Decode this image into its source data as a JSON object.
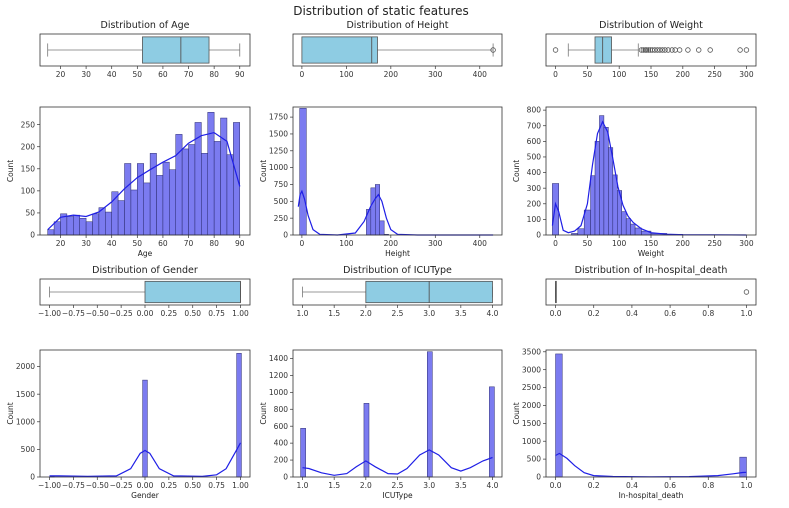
{
  "suptitle": "Distribution of static features",
  "colors": {
    "box": "#8ecce3",
    "hist": "#7b7bf0",
    "kde": "#1f1fe6"
  },
  "chart_data": [
    {
      "type": "box",
      "feature": "Age",
      "title": "Distribution of Age",
      "xlim": [
        12,
        94
      ],
      "xticks": [
        20,
        30,
        40,
        50,
        60,
        70,
        80,
        90
      ],
      "whisker_low": 15,
      "q1": 52,
      "median": 67,
      "q3": 78,
      "whisker_high": 90,
      "fliers": []
    },
    {
      "type": "bar",
      "feature": "Age",
      "xlabel": "Age",
      "ylabel": "Count",
      "xlim": [
        12,
        94
      ],
      "ylim": [
        0,
        290
      ],
      "xticks": [
        20,
        30,
        40,
        50,
        60,
        70,
        80,
        90
      ],
      "yticks": [
        0,
        50,
        100,
        150,
        200,
        250
      ],
      "bins": [
        {
          "x0": 15,
          "x1": 17.5,
          "count": 12
        },
        {
          "x0": 17.5,
          "x1": 20,
          "count": 30
        },
        {
          "x0": 20,
          "x1": 22.5,
          "count": 48
        },
        {
          "x0": 22.5,
          "x1": 25,
          "count": 42
        },
        {
          "x0": 25,
          "x1": 27.5,
          "count": 45
        },
        {
          "x0": 27.5,
          "x1": 30,
          "count": 38
        },
        {
          "x0": 30,
          "x1": 32.5,
          "count": 30
        },
        {
          "x0": 32.5,
          "x1": 35,
          "count": 48
        },
        {
          "x0": 35,
          "x1": 37.5,
          "count": 62
        },
        {
          "x0": 37.5,
          "x1": 40,
          "count": 52
        },
        {
          "x0": 40,
          "x1": 42.5,
          "count": 98
        },
        {
          "x0": 42.5,
          "x1": 45,
          "count": 78
        },
        {
          "x0": 45,
          "x1": 47.5,
          "count": 162
        },
        {
          "x0": 47.5,
          "x1": 50,
          "count": 102
        },
        {
          "x0": 50,
          "x1": 52.5,
          "count": 162
        },
        {
          "x0": 52.5,
          "x1": 55,
          "count": 118
        },
        {
          "x0": 55,
          "x1": 57.5,
          "count": 185
        },
        {
          "x0": 57.5,
          "x1": 60,
          "count": 135
        },
        {
          "x0": 60,
          "x1": 62.5,
          "count": 165
        },
        {
          "x0": 62.5,
          "x1": 65,
          "count": 148
        },
        {
          "x0": 65,
          "x1": 67.5,
          "count": 228
        },
        {
          "x0": 67.5,
          "x1": 70,
          "count": 195
        },
        {
          "x0": 70,
          "x1": 72.5,
          "count": 205
        },
        {
          "x0": 72.5,
          "x1": 75,
          "count": 255
        },
        {
          "x0": 75,
          "x1": 77.5,
          "count": 185
        },
        {
          "x0": 77.5,
          "x1": 80,
          "count": 278
        },
        {
          "x0": 80,
          "x1": 82.5,
          "count": 212
        },
        {
          "x0": 82.5,
          "x1": 85,
          "count": 265
        },
        {
          "x0": 85,
          "x1": 87.5,
          "count": 182
        },
        {
          "x0": 87.5,
          "x1": 90,
          "count": 255
        }
      ],
      "kde": [
        [
          15,
          12
        ],
        [
          20,
          40
        ],
        [
          25,
          45
        ],
        [
          30,
          42
        ],
        [
          35,
          52
        ],
        [
          40,
          75
        ],
        [
          45,
          105
        ],
        [
          50,
          130
        ],
        [
          55,
          148
        ],
        [
          60,
          165
        ],
        [
          65,
          180
        ],
        [
          70,
          208
        ],
        [
          75,
          225
        ],
        [
          80,
          232
        ],
        [
          85,
          212
        ],
        [
          90,
          110
        ]
      ]
    },
    {
      "type": "box",
      "feature": "Height",
      "title": "Distribution of Height",
      "xlim": [
        -20,
        450
      ],
      "xticks": [
        0,
        100,
        200,
        300,
        400
      ],
      "whisker_low": 0,
      "q1": 0,
      "median": 157,
      "q3": 170,
      "whisker_high": 430,
      "fliers": [
        430
      ]
    },
    {
      "type": "bar",
      "feature": "Height",
      "xlabel": "Height",
      "ylabel": "Count",
      "xlim": [
        -20,
        450
      ],
      "ylim": [
        0,
        1900
      ],
      "xticks": [
        0,
        100,
        200,
        300,
        400
      ],
      "yticks": [
        0,
        250,
        500,
        750,
        1000,
        1250,
        1500,
        1750
      ],
      "bins": [
        {
          "x0": -5,
          "x1": 10,
          "count": 1880
        },
        {
          "x0": 145,
          "x1": 155,
          "count": 380
        },
        {
          "x0": 155,
          "x1": 165,
          "count": 700
        },
        {
          "x0": 165,
          "x1": 175,
          "count": 750
        },
        {
          "x0": 175,
          "x1": 185,
          "count": 210
        },
        {
          "x0": 185,
          "x1": 195,
          "count": 10
        }
      ],
      "kde": [
        [
          -8,
          420
        ],
        [
          -4,
          600
        ],
        [
          0,
          650
        ],
        [
          6,
          530
        ],
        [
          14,
          290
        ],
        [
          25,
          80
        ],
        [
          40,
          10
        ],
        [
          80,
          0
        ],
        [
          120,
          30
        ],
        [
          140,
          200
        ],
        [
          155,
          430
        ],
        [
          165,
          540
        ],
        [
          172,
          600
        ],
        [
          180,
          500
        ],
        [
          190,
          250
        ],
        [
          200,
          80
        ],
        [
          215,
          10
        ],
        [
          260,
          0
        ],
        [
          350,
          0
        ],
        [
          430,
          0
        ]
      ]
    },
    {
      "type": "box",
      "feature": "Weight",
      "title": "Distribution of Weight",
      "xlim": [
        -15,
        315
      ],
      "xticks": [
        0,
        50,
        100,
        150,
        200,
        250,
        300
      ],
      "whisker_low": 20,
      "q1": 62,
      "median": 74,
      "q3": 88,
      "whisker_high": 130,
      "fliers": [
        0,
        135,
        138,
        141,
        143,
        146,
        149,
        152,
        156,
        160,
        164,
        168,
        172,
        177,
        183,
        188,
        195,
        208,
        225,
        243,
        290,
        300
      ]
    },
    {
      "type": "bar",
      "feature": "Weight",
      "xlabel": "Weight",
      "ylabel": "Count",
      "xlim": [
        -15,
        315
      ],
      "ylim": [
        0,
        820
      ],
      "xticks": [
        0,
        50,
        100,
        150,
        200,
        250,
        300
      ],
      "yticks": [
        0,
        100,
        200,
        300,
        400,
        500,
        600,
        700,
        800
      ],
      "bins": [
        {
          "x0": -5,
          "x1": 5,
          "count": 330
        },
        {
          "x0": 25,
          "x1": 35,
          "count": 10
        },
        {
          "x0": 35,
          "x1": 45,
          "count": 40
        },
        {
          "x0": 45,
          "x1": 55,
          "count": 160
        },
        {
          "x0": 55,
          "x1": 62,
          "count": 380
        },
        {
          "x0": 62,
          "x1": 69,
          "count": 600
        },
        {
          "x0": 69,
          "x1": 76,
          "count": 765
        },
        {
          "x0": 76,
          "x1": 83,
          "count": 690
        },
        {
          "x0": 83,
          "x1": 90,
          "count": 560
        },
        {
          "x0": 90,
          "x1": 97,
          "count": 385
        },
        {
          "x0": 97,
          "x1": 104,
          "count": 285
        },
        {
          "x0": 104,
          "x1": 111,
          "count": 150
        },
        {
          "x0": 111,
          "x1": 118,
          "count": 105
        },
        {
          "x0": 118,
          "x1": 125,
          "count": 70
        },
        {
          "x0": 125,
          "x1": 135,
          "count": 45
        },
        {
          "x0": 135,
          "x1": 150,
          "count": 25
        },
        {
          "x0": 150,
          "x1": 175,
          "count": 10
        },
        {
          "x0": 175,
          "x1": 200,
          "count": 4
        }
      ],
      "kde": [
        [
          -5,
          60
        ],
        [
          0,
          200
        ],
        [
          5,
          150
        ],
        [
          12,
          30
        ],
        [
          20,
          15
        ],
        [
          30,
          25
        ],
        [
          40,
          60
        ],
        [
          50,
          200
        ],
        [
          58,
          450
        ],
        [
          66,
          650
        ],
        [
          74,
          725
        ],
        [
          82,
          660
        ],
        [
          90,
          490
        ],
        [
          98,
          310
        ],
        [
          106,
          190
        ],
        [
          114,
          120
        ],
        [
          122,
          80
        ],
        [
          135,
          40
        ],
        [
          150,
          15
        ],
        [
          175,
          5
        ],
        [
          200,
          2
        ],
        [
          250,
          1
        ],
        [
          300,
          0
        ]
      ]
    },
    {
      "type": "box",
      "feature": "Gender",
      "title": "Distribution of Gender",
      "xlim": [
        -1.1,
        1.1
      ],
      "xticks": [
        -1.0,
        -0.75,
        -0.5,
        -0.25,
        0.0,
        0.25,
        0.5,
        0.75,
        1.0
      ],
      "xtick_labels": [
        "−1.00",
        "−0.75",
        "−0.50",
        "−0.25",
        "0.00",
        "0.25",
        "0.50",
        "0.75",
        "1.00"
      ],
      "whisker_low": -1.0,
      "q1": 0.0,
      "median": 1.0,
      "q3": 1.0,
      "whisker_high": 1.0,
      "fliers": []
    },
    {
      "type": "bar",
      "feature": "Gender",
      "xlabel": "Gender",
      "ylabel": "Count",
      "xlim": [
        -1.1,
        1.1
      ],
      "ylim": [
        0,
        2300
      ],
      "xticks": [
        -1.0,
        -0.75,
        -0.5,
        -0.25,
        0.0,
        0.25,
        0.5,
        0.75,
        1.0
      ],
      "xtick_labels": [
        "−1.00",
        "−0.75",
        "−0.50",
        "−0.25",
        "0.00",
        "0.25",
        "0.50",
        "0.75",
        "1.00"
      ],
      "yticks": [
        0,
        500,
        1000,
        1500,
        2000
      ],
      "bins": [
        {
          "x0": -1.0,
          "x1": -0.95,
          "count": 2
        },
        {
          "x0": -0.025,
          "x1": 0.025,
          "count": 1755
        },
        {
          "x0": 0.96,
          "x1": 1.01,
          "count": 2240
        }
      ],
      "kde": [
        [
          -1.0,
          20
        ],
        [
          -0.9,
          20
        ],
        [
          -0.6,
          10
        ],
        [
          -0.3,
          20
        ],
        [
          -0.15,
          150
        ],
        [
          -0.05,
          430
        ],
        [
          0.0,
          480
        ],
        [
          0.05,
          430
        ],
        [
          0.15,
          150
        ],
        [
          0.3,
          20
        ],
        [
          0.6,
          10
        ],
        [
          0.75,
          40
        ],
        [
          0.85,
          150
        ],
        [
          0.95,
          460
        ],
        [
          1.0,
          620
        ]
      ]
    },
    {
      "type": "box",
      "feature": "ICUType",
      "title": "Distribution of ICUType",
      "xlim": [
        0.85,
        4.15
      ],
      "xticks": [
        1.0,
        1.5,
        2.0,
        2.5,
        3.0,
        3.5,
        4.0
      ],
      "xtick_labels": [
        "1.0",
        "1.5",
        "2.0",
        "2.5",
        "3.0",
        "3.5",
        "4.0"
      ],
      "whisker_low": 1.0,
      "q1": 2.0,
      "median": 3.0,
      "q3": 4.0,
      "whisker_high": 4.0,
      "fliers": []
    },
    {
      "type": "bar",
      "feature": "ICUType",
      "xlabel": "ICUType",
      "ylabel": "Count",
      "xlim": [
        0.85,
        4.15
      ],
      "ylim": [
        0,
        1500
      ],
      "xticks": [
        1.0,
        1.5,
        2.0,
        2.5,
        3.0,
        3.5,
        4.0
      ],
      "xtick_labels": [
        "1.0",
        "1.5",
        "2.0",
        "2.5",
        "3.0",
        "3.5",
        "4.0"
      ],
      "yticks": [
        0,
        200,
        400,
        600,
        800,
        1000,
        1200,
        1400
      ],
      "bins": [
        {
          "x0": 0.97,
          "x1": 1.05,
          "count": 575
        },
        {
          "x0": 1.97,
          "x1": 2.05,
          "count": 870
        },
        {
          "x0": 2.97,
          "x1": 3.05,
          "count": 1480
        },
        {
          "x0": 3.95,
          "x1": 4.03,
          "count": 1065
        }
      ],
      "kde": [
        [
          1.0,
          110
        ],
        [
          1.1,
          100
        ],
        [
          1.3,
          50
        ],
        [
          1.5,
          20
        ],
        [
          1.7,
          40
        ],
        [
          1.85,
          120
        ],
        [
          2.0,
          190
        ],
        [
          2.15,
          120
        ],
        [
          2.35,
          40
        ],
        [
          2.5,
          35
        ],
        [
          2.65,
          100
        ],
        [
          2.85,
          260
        ],
        [
          3.0,
          320
        ],
        [
          3.15,
          260
        ],
        [
          3.35,
          110
        ],
        [
          3.5,
          70
        ],
        [
          3.65,
          110
        ],
        [
          3.85,
          190
        ],
        [
          4.0,
          230
        ]
      ]
    },
    {
      "type": "box",
      "feature": "In-hospital_death",
      "title": "Distribution of In-hospital_death",
      "xlim": [
        -0.05,
        1.05
      ],
      "xticks": [
        0.0,
        0.2,
        0.4,
        0.6,
        0.8,
        1.0
      ],
      "xtick_labels": [
        "0.0",
        "0.2",
        "0.4",
        "0.6",
        "0.8",
        "1.0"
      ],
      "whisker_low": 0.0,
      "q1": 0.0,
      "median": 0.0,
      "q3": 0.0,
      "whisker_high": 0.0,
      "fliers": [
        1.0
      ]
    },
    {
      "type": "bar",
      "feature": "In-hospital_death",
      "xlabel": "In-hospital_death",
      "ylabel": "Count",
      "xlim": [
        -0.05,
        1.05
      ],
      "ylim": [
        0,
        3550
      ],
      "xticks": [
        0.0,
        0.2,
        0.4,
        0.6,
        0.8,
        1.0
      ],
      "xtick_labels": [
        "0.0",
        "0.2",
        "0.4",
        "0.6",
        "0.8",
        "1.0"
      ],
      "yticks": [
        0,
        500,
        1000,
        1500,
        2000,
        2500,
        3000,
        3500
      ],
      "bins": [
        {
          "x0": 0.0,
          "x1": 0.035,
          "count": 3440
        },
        {
          "x0": 0.965,
          "x1": 1.0,
          "count": 555
        }
      ],
      "kde": [
        [
          0.0,
          600
        ],
        [
          0.02,
          660
        ],
        [
          0.06,
          520
        ],
        [
          0.1,
          320
        ],
        [
          0.15,
          120
        ],
        [
          0.2,
          40
        ],
        [
          0.3,
          15
        ],
        [
          0.5,
          5
        ],
        [
          0.7,
          10
        ],
        [
          0.85,
          40
        ],
        [
          0.93,
          90
        ],
        [
          0.98,
          125
        ],
        [
          1.0,
          130
        ]
      ]
    }
  ]
}
